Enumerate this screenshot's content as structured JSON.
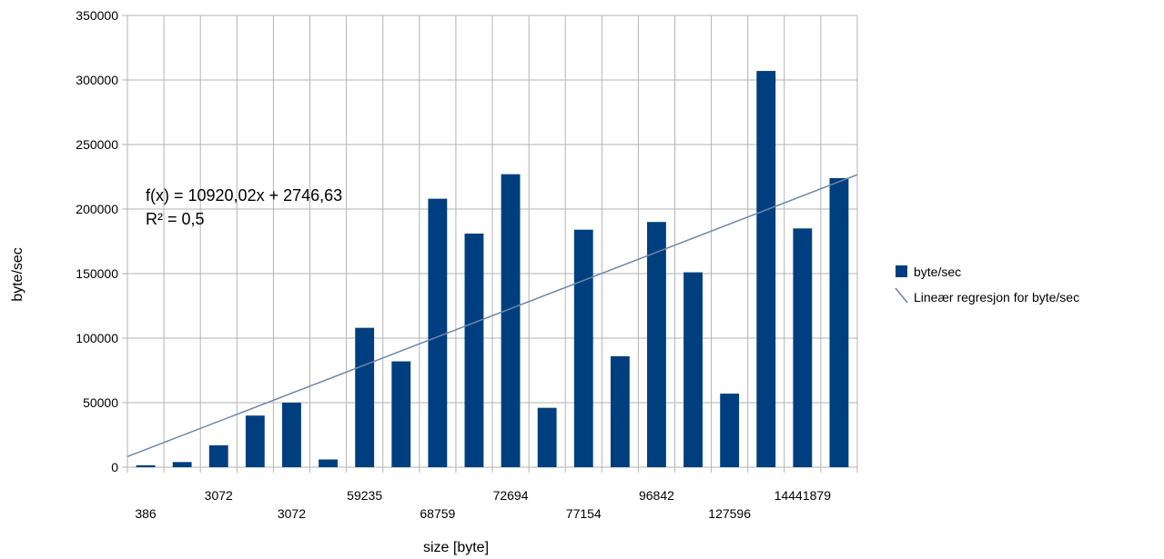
{
  "chart_data": {
    "type": "bar",
    "title": "",
    "xlabel": "size [byte]",
    "ylabel": "byte/sec",
    "ylim": [
      0,
      350000
    ],
    "yticks": [
      0,
      50000,
      100000,
      150000,
      200000,
      250000,
      300000,
      350000
    ],
    "grid": true,
    "legend_position": "right",
    "bar_color": "#003f7f",
    "trend_color": "#6f86a8",
    "categories": [
      "386",
      "",
      "3072",
      "",
      "3072",
      "",
      "59235",
      "",
      "68759",
      "",
      "72694",
      "",
      "77154",
      "",
      "96842",
      "",
      "127596",
      "",
      "14441879",
      ""
    ],
    "tick_labels": [
      {
        "text": "386",
        "row": 2
      },
      {
        "text": "3072",
        "row": 1
      },
      {
        "text": "3072",
        "row": 2
      },
      {
        "text": "59235",
        "row": 1
      },
      {
        "text": "68759",
        "row": 2
      },
      {
        "text": "72694",
        "row": 1
      },
      {
        "text": "77154",
        "row": 2
      },
      {
        "text": "96842",
        "row": 1
      },
      {
        "text": "127596",
        "row": 2
      },
      {
        "text": "14441879",
        "row": 1
      }
    ],
    "series": [
      {
        "name": "byte/sec",
        "values": [
          1500,
          4000,
          17000,
          40000,
          50000,
          6000,
          108000,
          82000,
          208000,
          181000,
          227000,
          46000,
          184000,
          86000,
          190000,
          151000,
          57000,
          307000,
          185000,
          224000
        ]
      }
    ],
    "trendline": {
      "name": "Lineær regresjon for byte/sec",
      "slope": 10920.02,
      "intercept": 2746.63,
      "equation": "f(x) = 10920,02x + 2746,63",
      "r2": "R² = 0,5"
    }
  }
}
